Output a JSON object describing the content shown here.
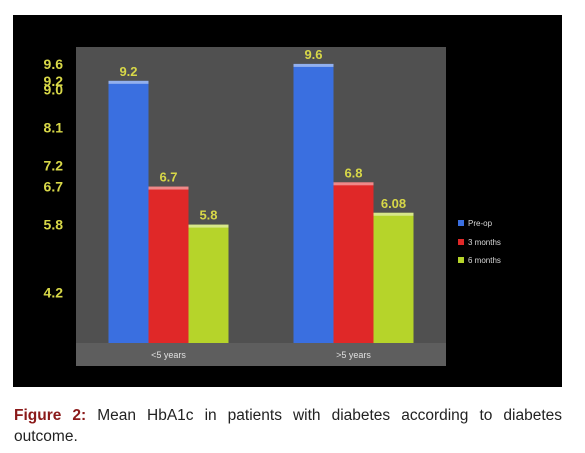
{
  "caption": {
    "label": "Figure 2:",
    "text": "Mean HbA1c in patients with diabetes according to diabetes outcome."
  },
  "colors": {
    "pre_op": "#3a6fe0",
    "3_months": "#e02828",
    "6_months": "#b6d42a",
    "plot_bg": "#505050",
    "panel_bg": "#000000",
    "label_yellow": "#d8d848"
  },
  "chart_data": {
    "type": "bar",
    "categories": [
      "<5 years",
      ">5 years"
    ],
    "series": [
      {
        "name": "Pre-op",
        "values": [
          9.2,
          9.6
        ],
        "labels": [
          "9.2",
          "9.6"
        ]
      },
      {
        "name": "3 months",
        "values": [
          6.7,
          6.8
        ],
        "labels": [
          "6.7",
          "6.8"
        ]
      },
      {
        "name": "6 months",
        "values": [
          5.8,
          6.08
        ],
        "labels": [
          "5.8",
          "6.08"
        ]
      }
    ],
    "y_ticks": [
      "9.6",
      "9.2",
      "9.0",
      "8.1",
      "7.2",
      "6.7",
      "5.8",
      "4.2"
    ],
    "ylim": [
      3.0,
      10.0
    ],
    "grid": false,
    "legend_position": "right"
  }
}
